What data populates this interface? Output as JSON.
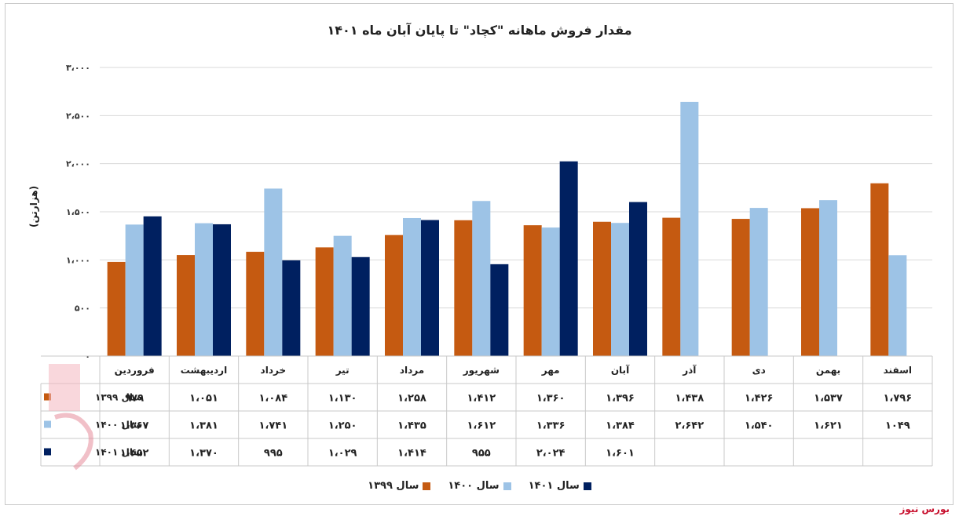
{
  "chart_data": {
    "type": "bar",
    "title": "مقدار فروش ماهانه \"کچاد\" تا پایان آبان ماه ۱۴۰۱",
    "ylabel": "(هزارتن)",
    "ylim": [
      0,
      3000
    ],
    "yticks": [
      "۰",
      "۵۰۰",
      "۱،۰۰۰",
      "۱،۵۰۰",
      "۲،۰۰۰",
      "۲،۵۰۰",
      "۳،۰۰۰"
    ],
    "categories": [
      "فروردین",
      "اردیبهشت",
      "خرداد",
      "تیر",
      "مرداد",
      "شهریور",
      "مهر",
      "آبان",
      "آذر",
      "دی",
      "بهمن",
      "اسفند"
    ],
    "series": [
      {
        "name": "سال ۱۳۹۹",
        "color": "#c55a11",
        "values": [
          979,
          1051,
          1084,
          1130,
          1258,
          1412,
          1360,
          1396,
          1438,
          1426,
          1537,
          1796
        ],
        "labels": [
          "۹۷۹",
          "۱،۰۵۱",
          "۱،۰۸۴",
          "۱،۱۳۰",
          "۱،۲۵۸",
          "۱،۴۱۲",
          "۱،۳۶۰",
          "۱،۳۹۶",
          "۱،۴۳۸",
          "۱،۴۲۶",
          "۱،۵۳۷",
          "۱،۷۹۶"
        ]
      },
      {
        "name": "سال ۱۴۰۰",
        "color": "#9dc3e6",
        "values": [
          1367,
          1381,
          1741,
          1250,
          1435,
          1612,
          1336,
          1384,
          2642,
          1540,
          1621,
          1049
        ],
        "labels": [
          "۱،۳۶۷",
          "۱،۳۸۱",
          "۱،۷۴۱",
          "۱،۲۵۰",
          "۱،۴۳۵",
          "۱،۶۱۲",
          "۱،۳۳۶",
          "۱،۳۸۴",
          "۲،۶۴۲",
          "۱،۵۴۰",
          "۱،۶۲۱",
          "۱۰۴۹"
        ]
      },
      {
        "name": "سال ۱۴۰۱",
        "color": "#002060",
        "values": [
          1452,
          1370,
          995,
          1029,
          1414,
          955,
          2024,
          1601,
          null,
          null,
          null,
          null
        ],
        "labels": [
          "۱،۴۵۲",
          "۱،۳۷۰",
          "۹۹۵",
          "۱،۰۲۹",
          "۱،۴۱۴",
          "۹۵۵",
          "۲،۰۲۴",
          "۱،۶۰۱",
          "",
          "",
          "",
          ""
        ]
      }
    ],
    "grid": true,
    "legend_position": "bottom"
  },
  "source": "بورس نیوز"
}
